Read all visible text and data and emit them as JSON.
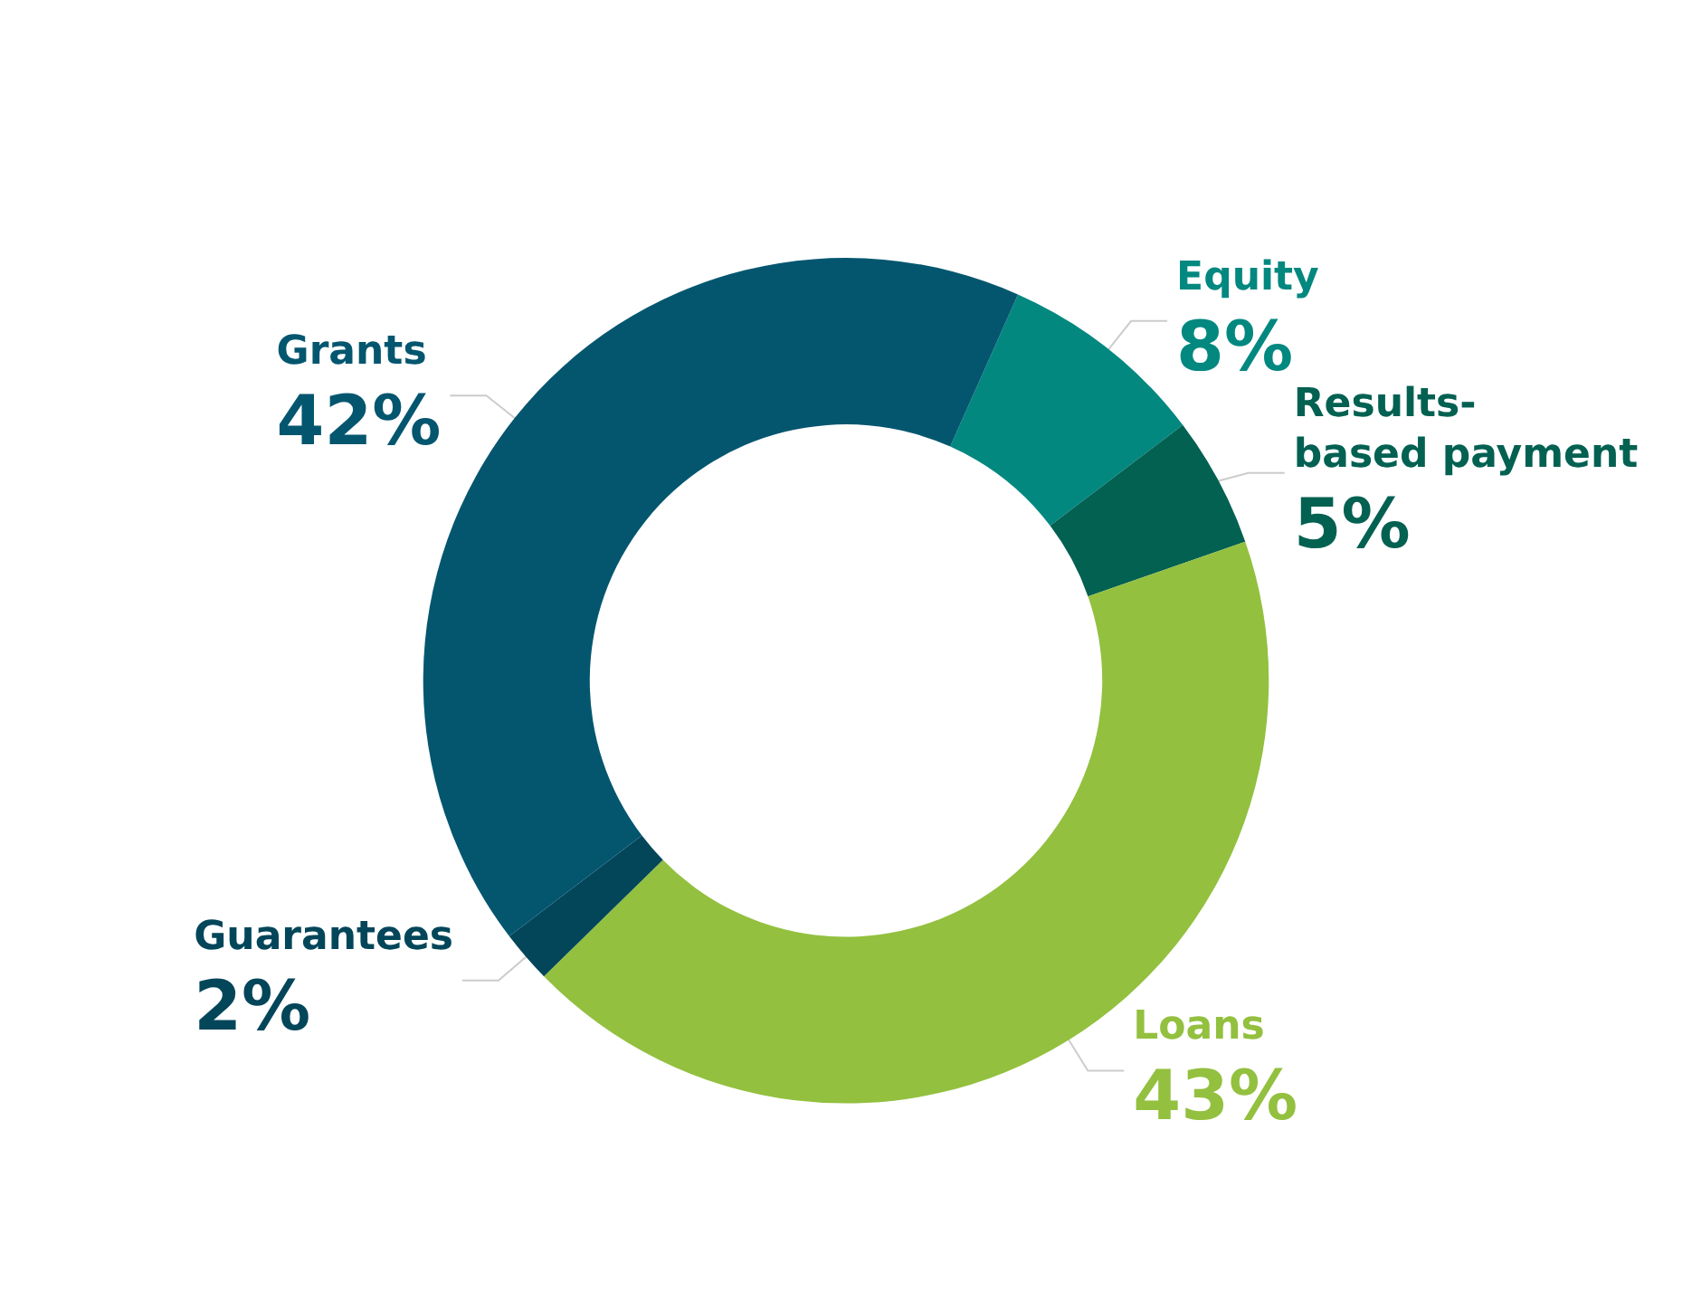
{
  "chart_data": {
    "type": "donut",
    "categories": [
      "Equity",
      "Results-based payment",
      "Loans",
      "Guarantees",
      "Grants"
    ],
    "values": [
      8,
      5,
      43,
      2,
      42
    ],
    "colors": [
      "#038880",
      "#036152",
      "#93c03f",
      "#03465a",
      "#04566f"
    ],
    "value_labels": [
      "8%",
      "5%",
      "43%",
      "2%",
      "42%"
    ],
    "legend": false
  }
}
